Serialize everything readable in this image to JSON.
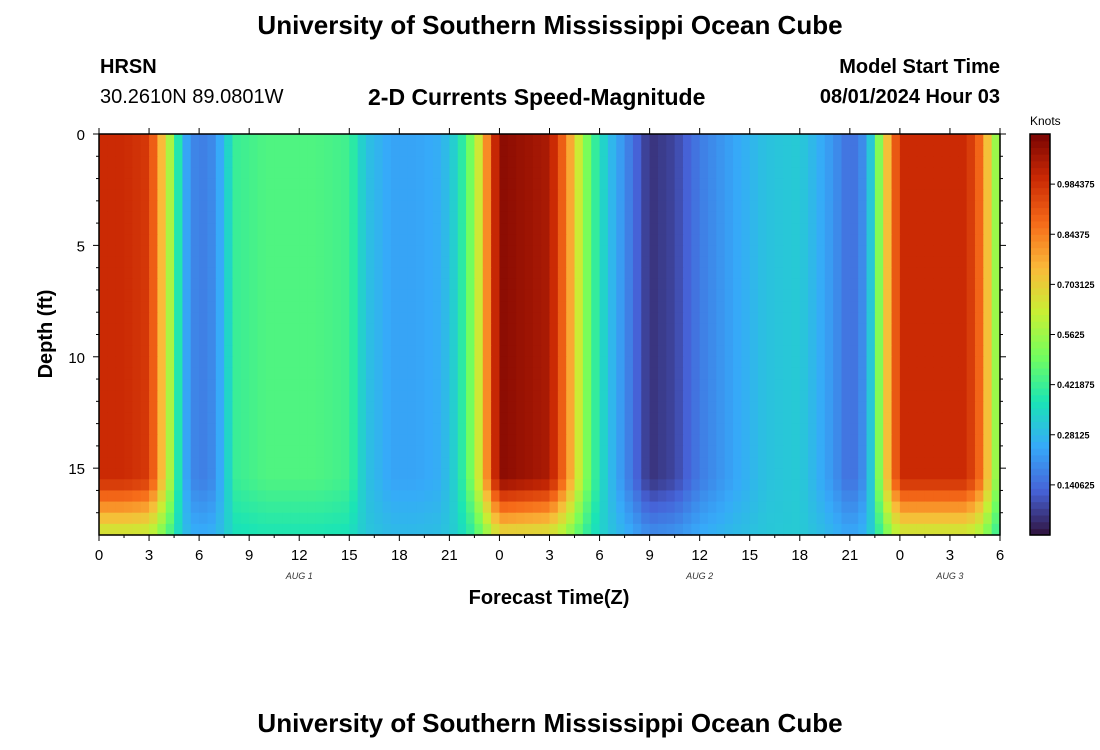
{
  "header": {
    "title": "University of Southern Mississippi Ocean Cube",
    "station": "HRSN",
    "coordinates": "30.2610N  89.0801W",
    "chart_title": "2-D Currents Speed-Magnitude",
    "model_start_label": "Model Start Time",
    "model_start_value": "08/01/2024 Hour 03"
  },
  "footer": {
    "title": "University of Southern Mississippi Ocean Cube"
  },
  "chart_data": {
    "type": "heatmap",
    "title": "2-D Currents Speed-Magnitude",
    "xlabel": "Forecast Time(Z)",
    "ylabel": "Depth (ft)",
    "x_ticks": [
      "0",
      "3",
      "6",
      "9",
      "12",
      "15",
      "18",
      "21",
      "0",
      "3",
      "6",
      "9",
      "12",
      "15",
      "18",
      "21",
      "0",
      "3",
      "6"
    ],
    "x_tick_hours": [
      0,
      3,
      6,
      9,
      12,
      15,
      18,
      21,
      24,
      27,
      30,
      33,
      36,
      39,
      42,
      45,
      48,
      51,
      54
    ],
    "x_range_hours": [
      0,
      54
    ],
    "y_ticks": [
      "0",
      "5",
      "10",
      "15"
    ],
    "y_tick_values": [
      0,
      5,
      10,
      15
    ],
    "y_range_ft": [
      0,
      18
    ],
    "date_labels": [
      {
        "text": "AUG 1",
        "hour": 12
      },
      {
        "text": "AUG 2",
        "hour": 36
      },
      {
        "text": "AUG 3",
        "hour": 51
      }
    ],
    "colorbar": {
      "unit": "Knots",
      "min": 0.0,
      "max": 1.125,
      "ticks": [
        "0.140625",
        "0.28125",
        "0.421875",
        "0.5625",
        "0.703125",
        "0.84375",
        "0.984375"
      ],
      "tick_values": [
        0.140625,
        0.28125,
        0.421875,
        0.5625,
        0.703125,
        0.84375,
        0.984375
      ],
      "colors": [
        "#30123b",
        "#4662d7",
        "#36aaf9",
        "#1ae4b6",
        "#72fe5e",
        "#c7ef34",
        "#fabA39",
        "#f66b19",
        "#cb2a04",
        "#7a0403"
      ]
    },
    "speed_profile_hours": [
      0,
      1.5,
      3,
      3.6,
      4.2,
      4.6,
      5,
      5.5,
      6,
      7,
      7.5,
      8.2,
      10,
      13,
      15,
      16,
      17.5,
      19,
      20.5,
      21.5,
      22.5,
      24,
      27,
      28,
      28.8,
      29.5,
      30.5,
      32,
      33,
      34.5,
      36,
      38,
      40,
      42,
      43.5,
      44.5,
      45,
      45.8,
      46.4,
      47,
      48,
      52,
      53,
      53.5,
      54
    ],
    "speed_profile_knots": [
      1.0,
      1.0,
      0.97,
      0.8,
      0.6,
      0.45,
      0.28,
      0.2,
      0.17,
      0.2,
      0.3,
      0.42,
      0.45,
      0.45,
      0.43,
      0.3,
      0.24,
      0.24,
      0.26,
      0.35,
      0.55,
      1.1,
      1.05,
      0.85,
      0.62,
      0.45,
      0.3,
      0.15,
      0.05,
      0.08,
      0.17,
      0.24,
      0.3,
      0.32,
      0.24,
      0.18,
      0.14,
      0.2,
      0.35,
      0.65,
      1.0,
      1.0,
      0.85,
      0.62,
      0.5
    ]
  }
}
